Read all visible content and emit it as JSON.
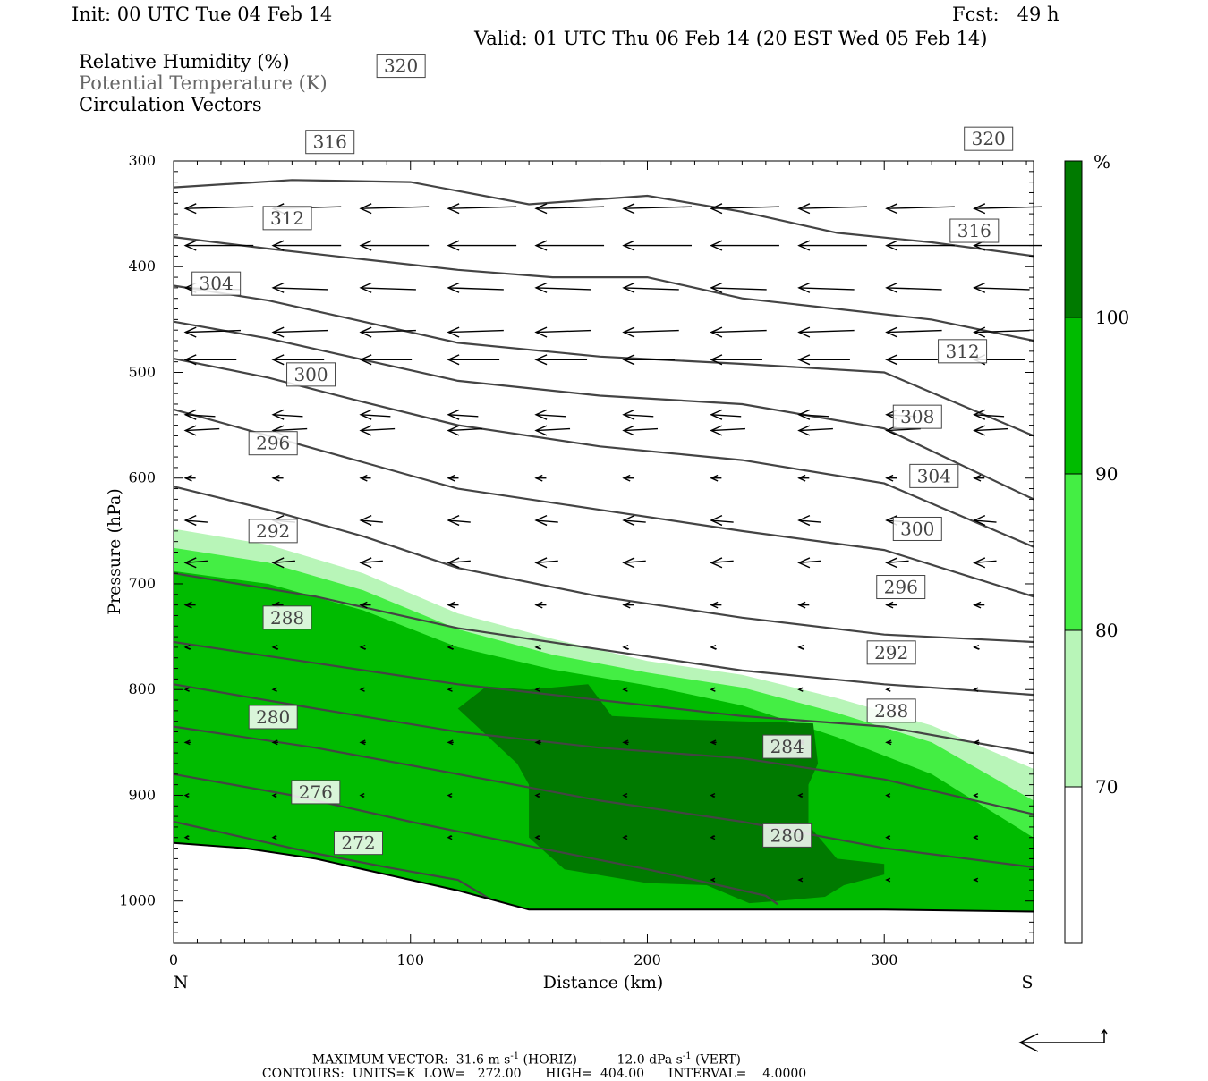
{
  "header": {
    "init": "Init: 00 UTC Tue 04 Feb 14",
    "fcst": "Fcst:   49 h",
    "valid": "Valid: 01 UTC Thu 06 Feb 14 (20 EST Wed 05 Feb 14)",
    "field1": "Relative Humidity (%)",
    "field2": "Potential Temperature (K)",
    "field3": "Circulation Vectors"
  },
  "footer": {
    "maxvec_label": "MAXIMUM VECTOR:",
    "horiz_value": "31.6 m s",
    "horiz_unit": "(HORIZ)",
    "vert_value": "12.0 dPa s",
    "vert_unit": "(VERT)",
    "exp": "-1",
    "contours_label": "CONTOURS:",
    "units": "UNITS=K",
    "low": "LOW=   272.00",
    "high": "HIGH=  404.00",
    "interval": "INTERVAL=    4.0000"
  },
  "chart_data": {
    "type": "cross-section",
    "xlabel": "Distance (km)",
    "ylabel": "Pressure (hPa)",
    "xlim": [
      0,
      363
    ],
    "ylim": [
      1040,
      300
    ],
    "x_ticks": [
      "0",
      "100",
      "200",
      "300"
    ],
    "y_ticks": [
      "300",
      "400",
      "500",
      "600",
      "700",
      "800",
      "900",
      "1000"
    ],
    "x_end_labels": {
      "left": "N",
      "right": "S"
    },
    "colors": {
      "70": "#b8f5b8",
      "80": "#44ee44",
      "90": "#00bb00",
      "100": "#007a00",
      "contour": "#444444",
      "vector": "#000000"
    },
    "colorbar": {
      "unit": "%",
      "levels": [
        "70",
        "80",
        "90",
        "100"
      ]
    },
    "rh_fill": [
      {
        "level": 70,
        "upper": [
          [
            0,
            648
          ],
          [
            40,
            663
          ],
          [
            80,
            690
          ],
          [
            120,
            728
          ],
          [
            160,
            752
          ],
          [
            200,
            773
          ],
          [
            240,
            786
          ],
          [
            280,
            808
          ],
          [
            320,
            834
          ],
          [
            363,
            875
          ]
        ]
      },
      {
        "level": 80,
        "upper": [
          [
            0,
            666
          ],
          [
            40,
            680
          ],
          [
            80,
            706
          ],
          [
            120,
            743
          ],
          [
            160,
            767
          ],
          [
            200,
            784
          ],
          [
            240,
            798
          ],
          [
            280,
            822
          ],
          [
            320,
            850
          ],
          [
            363,
            905
          ]
        ]
      },
      {
        "level": 90,
        "upper": [
          [
            0,
            688
          ],
          [
            40,
            700
          ],
          [
            80,
            725
          ],
          [
            120,
            760
          ],
          [
            160,
            781
          ],
          [
            200,
            796
          ],
          [
            240,
            815
          ],
          [
            280,
            845
          ],
          [
            320,
            880
          ],
          [
            363,
            940
          ]
        ]
      }
    ],
    "rh_100_polygon": [
      [
        120,
        818
      ],
      [
        132,
        797
      ],
      [
        150,
        800
      ],
      [
        175,
        795
      ],
      [
        185,
        825
      ],
      [
        210,
        828
      ],
      [
        240,
        830
      ],
      [
        270,
        832
      ],
      [
        272,
        870
      ],
      [
        268,
        890
      ],
      [
        268,
        928
      ],
      [
        280,
        960
      ],
      [
        300,
        965
      ],
      [
        300,
        975
      ],
      [
        283,
        985
      ],
      [
        275,
        996
      ],
      [
        255,
        1000
      ],
      [
        243,
        1002
      ],
      [
        225,
        985
      ],
      [
        200,
        983
      ],
      [
        165,
        970
      ],
      [
        150,
        940
      ],
      [
        150,
        890
      ],
      [
        145,
        870
      ]
    ],
    "theta_contours": [
      {
        "value": "272",
        "points": [
          [
            0,
            925
          ],
          [
            30,
            940
          ],
          [
            60,
            955
          ],
          [
            90,
            968
          ],
          [
            120,
            980
          ],
          [
            135,
            1000
          ]
        ],
        "label_at": [
          78,
          945
        ]
      },
      {
        "value": "276",
        "points": [
          [
            0,
            880
          ],
          [
            50,
            900
          ],
          [
            100,
            925
          ],
          [
            150,
            948
          ],
          [
            200,
            970
          ],
          [
            250,
            995
          ],
          [
            255,
            1003
          ]
        ],
        "label_at": [
          60,
          897
        ]
      },
      {
        "value": "280",
        "points": [
          [
            0,
            835
          ],
          [
            60,
            855
          ],
          [
            120,
            880
          ],
          [
            180,
            905
          ],
          [
            240,
            925
          ],
          [
            300,
            950
          ],
          [
            363,
            968
          ]
        ],
        "label_at": [
          42,
          826
        ]
      },
      {
        "value": "284",
        "points": [
          [
            0,
            795
          ],
          [
            60,
            818
          ],
          [
            120,
            840
          ],
          [
            180,
            855
          ],
          [
            240,
            865
          ],
          [
            300,
            885
          ],
          [
            363,
            918
          ]
        ],
        "label_at": [
          259,
          854
        ]
      },
      {
        "value": "288",
        "points": [
          [
            0,
            755
          ],
          [
            60,
            775
          ],
          [
            120,
            795
          ],
          [
            180,
            810
          ],
          [
            240,
            825
          ],
          [
            300,
            835
          ],
          [
            363,
            860
          ]
        ],
        "label_at": [
          48,
          732
        ]
      },
      {
        "value": "292",
        "points": [
          [
            0,
            690
          ],
          [
            60,
            712
          ],
          [
            120,
            742
          ],
          [
            180,
            762
          ],
          [
            240,
            782
          ],
          [
            300,
            795
          ],
          [
            363,
            805
          ]
        ],
        "label_at": [
          42,
          650
        ]
      },
      {
        "value": "296",
        "points": [
          [
            0,
            608
          ],
          [
            40,
            630
          ],
          [
            80,
            655
          ],
          [
            120,
            685
          ],
          [
            180,
            712
          ],
          [
            240,
            732
          ],
          [
            300,
            748
          ],
          [
            363,
            755
          ]
        ],
        "label_at": [
          42,
          567
        ]
      },
      {
        "value": "300",
        "points": [
          [
            0,
            535
          ],
          [
            40,
            560
          ],
          [
            80,
            585
          ],
          [
            120,
            610
          ],
          [
            180,
            630
          ],
          [
            240,
            650
          ],
          [
            300,
            668
          ],
          [
            363,
            712
          ]
        ],
        "label_at": [
          58,
          502
        ]
      },
      {
        "value": "304",
        "points": [
          [
            0,
            487
          ],
          [
            40,
            505
          ],
          [
            80,
            528
          ],
          [
            120,
            550
          ],
          [
            180,
            570
          ],
          [
            240,
            583
          ],
          [
            300,
            605
          ],
          [
            363,
            665
          ]
        ],
        "label_at": [
          18,
          416
        ]
      },
      {
        "value": "308",
        "points": [
          [
            0,
            452
          ],
          [
            40,
            468
          ],
          [
            80,
            488
          ],
          [
            120,
            508
          ],
          [
            180,
            522
          ],
          [
            240,
            530
          ],
          [
            300,
            553
          ],
          [
            363,
            620
          ]
        ],
        "label_at": [
          314,
          542
        ]
      },
      {
        "value": "312",
        "points": [
          [
            0,
            418
          ],
          [
            40,
            432
          ],
          [
            80,
            452
          ],
          [
            120,
            472
          ],
          [
            180,
            485
          ],
          [
            240,
            492
          ],
          [
            300,
            500
          ],
          [
            363,
            560
          ]
        ],
        "label_at": [
          48,
          354
        ]
      },
      {
        "value": "316",
        "points": [
          [
            0,
            372
          ],
          [
            40,
            383
          ],
          [
            80,
            393
          ],
          [
            120,
            403
          ],
          [
            160,
            410
          ],
          [
            200,
            410
          ],
          [
            240,
            430
          ],
          [
            280,
            440
          ],
          [
            320,
            450
          ],
          [
            363,
            470
          ]
        ],
        "label_at": [
          66,
          282
        ]
      },
      {
        "value": "320",
        "points": [
          [
            0,
            325
          ],
          [
            50,
            318
          ],
          [
            100,
            320
          ],
          [
            150,
            341
          ],
          [
            200,
            333
          ],
          [
            240,
            348
          ],
          [
            280,
            368
          ],
          [
            320,
            377
          ],
          [
            363,
            390
          ]
        ],
        "label_at": [
          96,
          210
        ]
      }
    ],
    "extra_contour_labels": [
      {
        "value": "320",
        "label_at": [
          344,
          279
        ]
      },
      {
        "value": "316",
        "label_at": [
          338,
          366
        ]
      },
      {
        "value": "312",
        "label_at": [
          333,
          480
        ]
      },
      {
        "value": "304",
        "label_at": [
          321,
          598
        ]
      },
      {
        "value": "300",
        "label_at": [
          314,
          648
        ]
      },
      {
        "value": "296",
        "label_at": [
          307,
          703
        ]
      },
      {
        "value": "292",
        "label_at": [
          303,
          765
        ]
      },
      {
        "value": "288",
        "label_at": [
          303,
          820
        ]
      },
      {
        "value": "280",
        "label_at": [
          259,
          938
        ]
      }
    ]
  }
}
